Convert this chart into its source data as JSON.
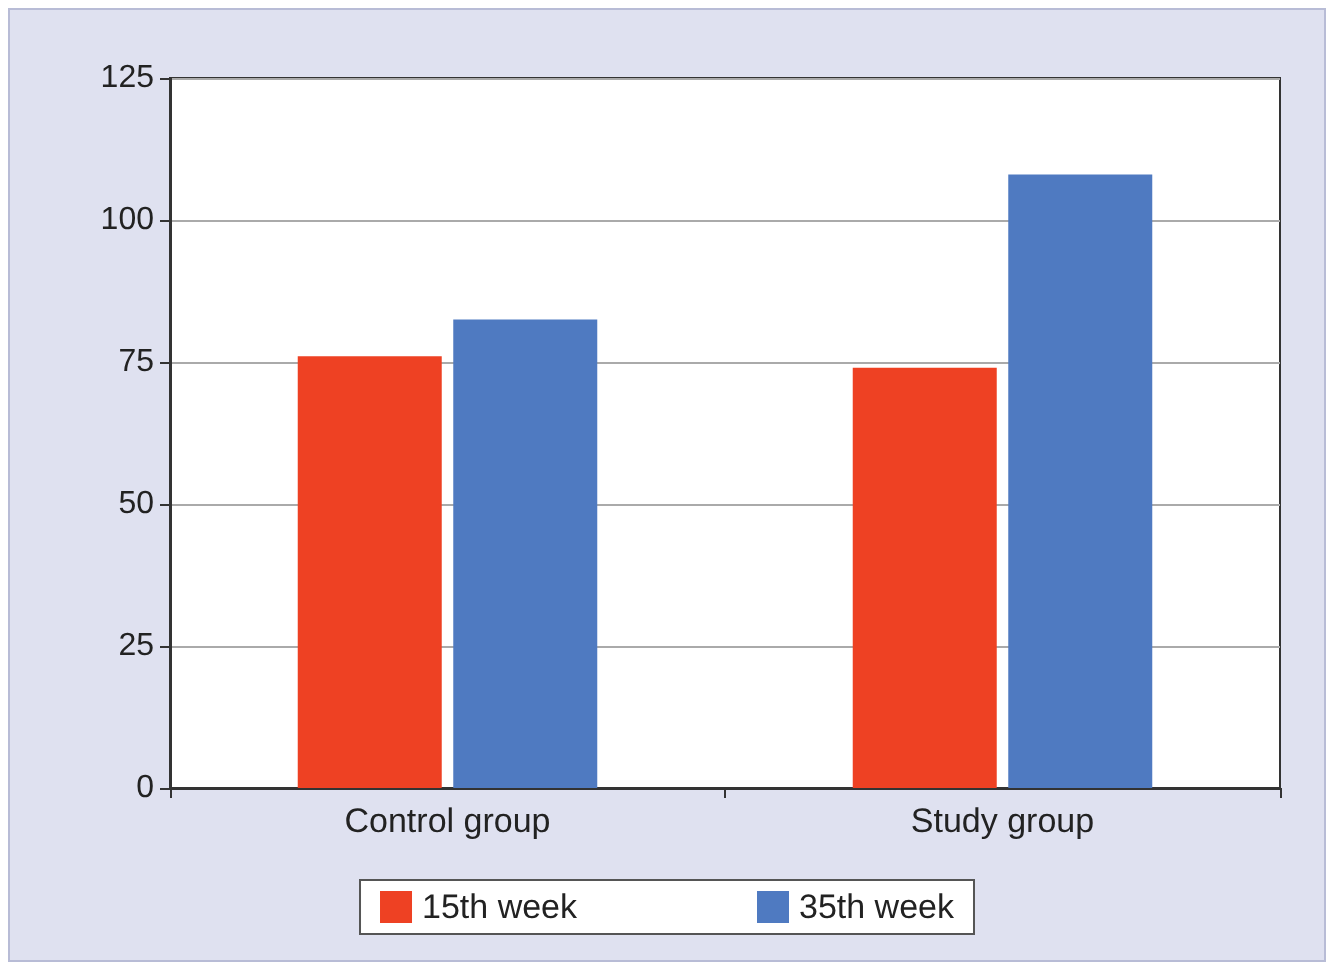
{
  "chart_data": {
    "type": "bar",
    "categories": [
      "Control group",
      "Study group"
    ],
    "series": [
      {
        "name": "15th week",
        "color": "#ee4123",
        "values": [
          76,
          74
        ]
      },
      {
        "name": "35th week",
        "color": "#4f7ac1",
        "values": [
          82.5,
          108
        ]
      }
    ],
    "ylim": [
      0,
      125
    ],
    "yticks": [
      0,
      25,
      50,
      75,
      100,
      125
    ],
    "grid": "y",
    "legend": "bottom"
  }
}
